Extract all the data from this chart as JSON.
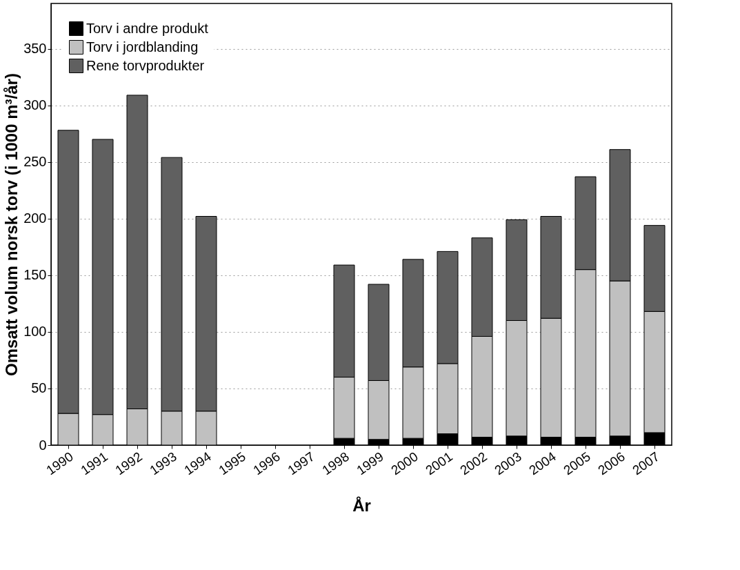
{
  "chart_data": {
    "type": "bar",
    "stacked": true,
    "xlabel": "År",
    "ylabel": "Omsatt volum norsk torv (i 1000 m³/år)",
    "categories": [
      "1990",
      "1991",
      "1992",
      "1993",
      "1994",
      "1995",
      "1996",
      "1997",
      "1998",
      "1999",
      "2000",
      "2001",
      "2002",
      "2003",
      "2004",
      "2005",
      "2006",
      "2007"
    ],
    "series": [
      {
        "name": "Torv i andre produkt",
        "color": "#000000",
        "values": [
          0,
          0,
          0,
          0,
          0,
          null,
          null,
          null,
          6,
          5,
          6,
          10,
          7,
          8,
          7,
          7,
          8,
          11
        ]
      },
      {
        "name": "Torv i jordblanding",
        "color": "#c0c0c0",
        "values": [
          28,
          27,
          32,
          30,
          30,
          null,
          null,
          null,
          54,
          52,
          63,
          62,
          89,
          102,
          105,
          148,
          137,
          107
        ]
      },
      {
        "name": "Rene torvprodukter",
        "color": "#606060",
        "values": [
          250,
          243,
          277,
          224,
          172,
          null,
          null,
          null,
          99,
          85,
          95,
          99,
          87,
          89,
          90,
          82,
          116,
          76
        ]
      }
    ],
    "ylim": [
      0,
      390
    ],
    "yticks": [
      0,
      50,
      100,
      150,
      200,
      250,
      300,
      350
    ],
    "grid": "y",
    "legend": "top left"
  }
}
